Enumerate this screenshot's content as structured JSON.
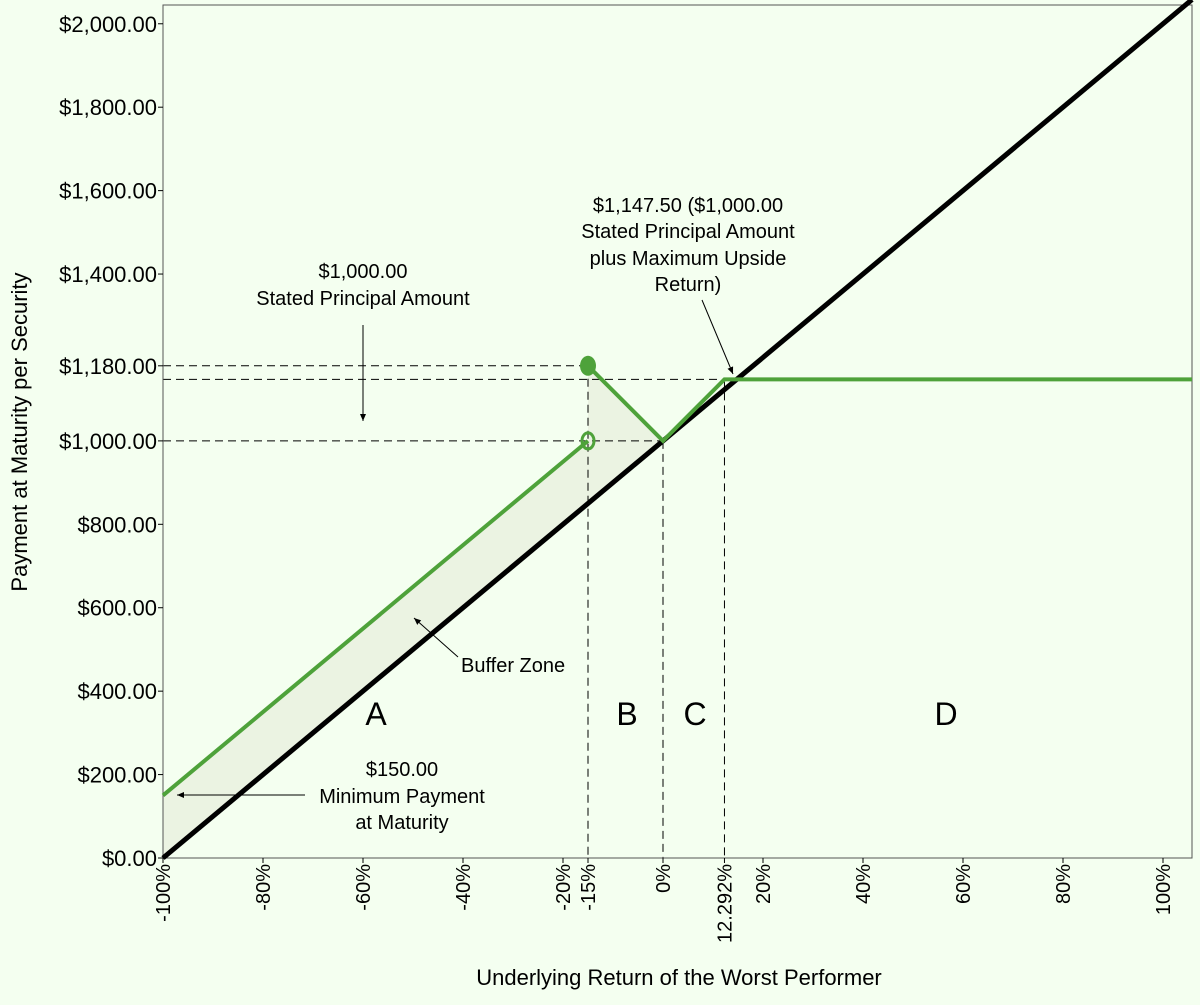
{
  "chart_data": {
    "type": "line",
    "x_label": "Underlying Return of the Worst Performer",
    "y_label": "Payment at Maturity per Security",
    "xlim": [
      -100,
      105.8
    ],
    "ylim": [
      0,
      2045
    ],
    "xticks": [
      {
        "value": -100,
        "label": "-100%"
      },
      {
        "value": -80,
        "label": "-80%"
      },
      {
        "value": -60,
        "label": "-60%"
      },
      {
        "value": -40,
        "label": "-40%"
      },
      {
        "value": -20,
        "label": "-20%"
      },
      {
        "value": -15,
        "label": "-15%"
      },
      {
        "value": 0,
        "label": "0%"
      },
      {
        "value": 12.292,
        "label": "12.292%"
      },
      {
        "value": 20,
        "label": "20%"
      },
      {
        "value": 40,
        "label": "40%"
      },
      {
        "value": 60,
        "label": "60%"
      },
      {
        "value": 80,
        "label": "80%"
      },
      {
        "value": 100,
        "label": "100%"
      }
    ],
    "yticks": [
      {
        "value": 0,
        "label": "$0.00"
      },
      {
        "value": 200,
        "label": "$200.00"
      },
      {
        "value": 400,
        "label": "$400.00"
      },
      {
        "value": 600,
        "label": "$600.00"
      },
      {
        "value": 800,
        "label": "$800.00"
      },
      {
        "value": 1000,
        "label": "$1,000.00"
      },
      {
        "value": 1180,
        "label": "$1,180.00"
      },
      {
        "value": 1400,
        "label": "$1,400.00"
      },
      {
        "value": 1600,
        "label": "$1,600.00"
      },
      {
        "value": 1800,
        "label": "$1,800.00"
      },
      {
        "value": 2000,
        "label": "$2,000.00"
      }
    ],
    "series": [
      {
        "color": "#000000",
        "x": [
          -100,
          105.8
        ],
        "values": [
          0,
          2058
        ]
      },
      {
        "color": "#4ea23a",
        "x": [
          -100,
          -15,
          -15,
          -15,
          0,
          12.292,
          105.8
        ],
        "values": [
          150,
          1000,
          null,
          1180,
          1000,
          1147.5,
          1147.5
        ]
      }
    ],
    "annotations": [
      {
        "lines": [
          "$1,000.00",
          "Stated Principal Amount"
        ]
      },
      {
        "lines": [
          "$1,147.50 ($1,000.00",
          "Stated Principal Amount",
          "plus Maximum Upside",
          "Return)"
        ]
      },
      {
        "lines": [
          "Buffer Zone"
        ]
      },
      {
        "lines": [
          "$150.00",
          "Minimum Payment",
          "at Maturity"
        ]
      }
    ],
    "regions": [
      "A",
      "B",
      "C",
      "D"
    ],
    "region_color": "#4ea23a",
    "background": "#f4fff0",
    "buffer_color": "#ebf3e2"
  }
}
